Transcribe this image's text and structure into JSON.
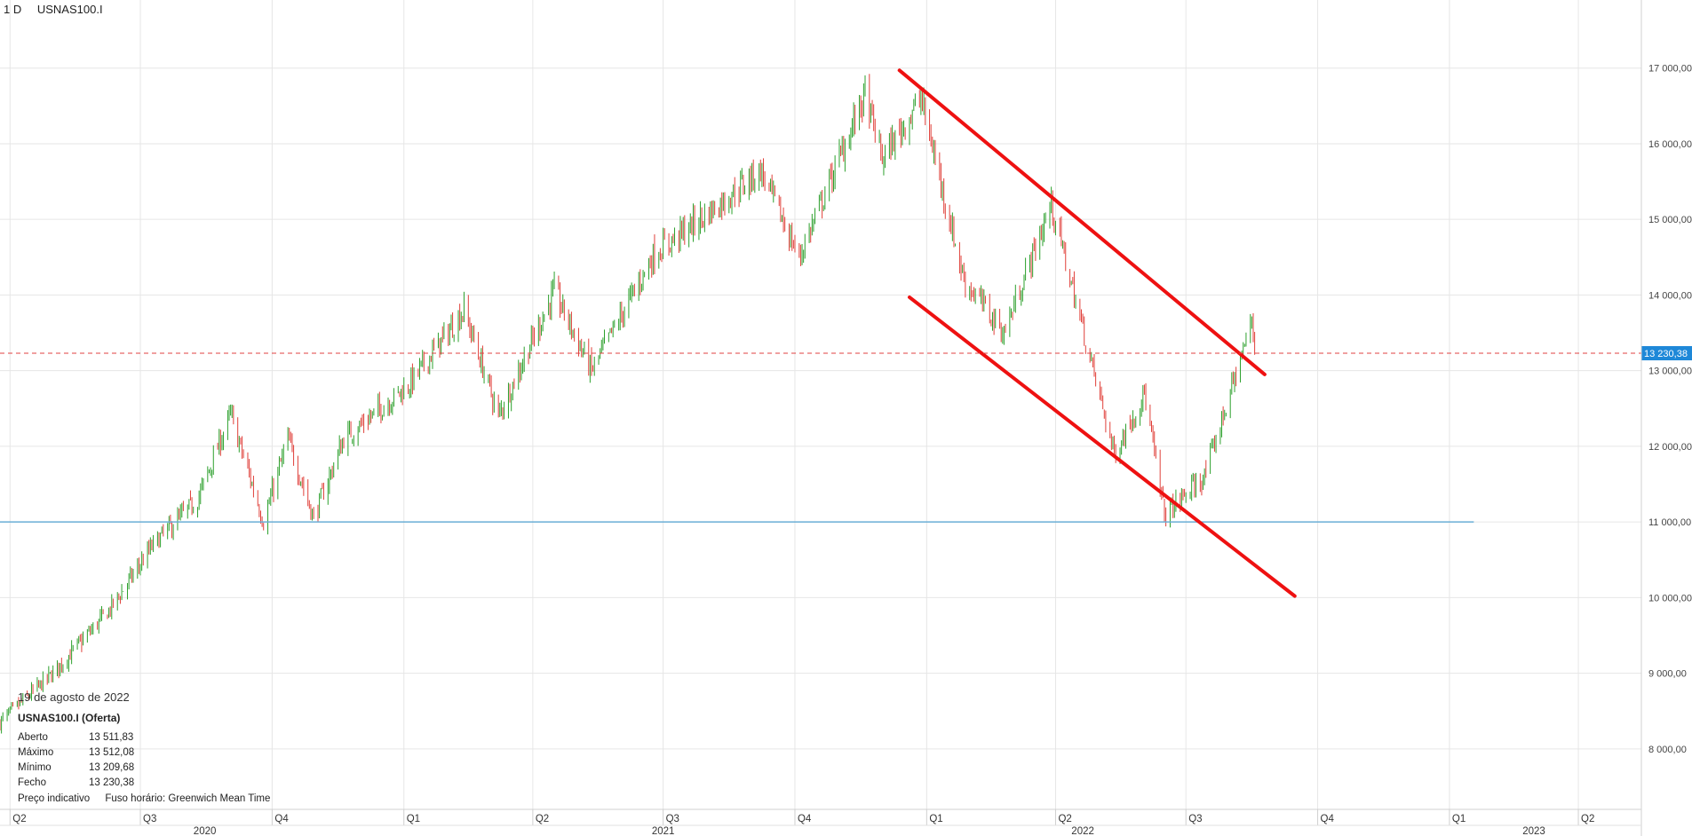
{
  "header": {
    "interval": "1 D",
    "symbol": "USNAS100.I"
  },
  "info_panel": {
    "date": "19 de agosto de 2022",
    "instrument": "USNAS100.I (Oferta)",
    "rows": [
      {
        "label": "Aberto",
        "value": "13 511,83"
      },
      {
        "label": "Máximo",
        "value": "13 512,08"
      },
      {
        "label": "Mínimo",
        "value": "13 209,68"
      },
      {
        "label": "Fecho",
        "value": "13 230,38"
      }
    ],
    "footer_note": "Preço indicativo",
    "timezone": "Fuso horário: Greenwich Mean Time"
  },
  "colors": {
    "up": "#2ca02c",
    "down": "#e0403a",
    "grid": "#e6e6e6",
    "trend": "#ee1111",
    "support": "#6aaed6",
    "price_line": "#e04040",
    "price_badge": "#1e88d8"
  },
  "chart_data": {
    "type": "candlestick",
    "ylim": [
      7200,
      17900
    ],
    "yticks": [
      "17 000,00",
      "16 000,00",
      "15 000,00",
      "14 000,00",
      "13 000,00",
      "12 000,00",
      "11 000,00",
      "10 000,00",
      "9 000,00",
      "8 000,00"
    ],
    "ytick_values": [
      17000,
      16000,
      15000,
      14000,
      13000,
      12000,
      11000,
      10000,
      9000,
      8000
    ],
    "last_price": 13230.38,
    "last_price_label": "13 230,38",
    "xrange": [
      "2020-03-25",
      "2023-05-15"
    ],
    "quarter_ticks": [
      {
        "date": "2020-04-01",
        "label": "Q2"
      },
      {
        "date": "2020-07-01",
        "label": "Q3"
      },
      {
        "date": "2020-10-01",
        "label": "Q4"
      },
      {
        "date": "2021-01-01",
        "label": "Q1"
      },
      {
        "date": "2021-04-01",
        "label": "Q2"
      },
      {
        "date": "2021-07-01",
        "label": "Q3"
      },
      {
        "date": "2021-10-01",
        "label": "Q4"
      },
      {
        "date": "2022-01-01",
        "label": "Q1"
      },
      {
        "date": "2022-04-01",
        "label": "Q2"
      },
      {
        "date": "2022-07-01",
        "label": "Q3"
      },
      {
        "date": "2022-10-01",
        "label": "Q4"
      },
      {
        "date": "2023-01-01",
        "label": "Q1"
      },
      {
        "date": "2023-04-01",
        "label": "Q2"
      }
    ],
    "year_ticks": [
      {
        "date": "2020-08-15",
        "label": "2020"
      },
      {
        "date": "2021-07-01",
        "label": "2021"
      },
      {
        "date": "2022-04-20",
        "label": "2022"
      },
      {
        "date": "2023-03-01",
        "label": "2023"
      }
    ],
    "price_path": [
      [
        "2020-03-25",
        8350
      ],
      [
        "2020-05-01",
        9000
      ],
      [
        "2020-06-10",
        9850
      ],
      [
        "2020-07-10",
        10700
      ],
      [
        "2020-08-10",
        11300
      ],
      [
        "2020-09-02",
        12420
      ],
      [
        "2020-09-25",
        11000
      ],
      [
        "2020-10-12",
        12100
      ],
      [
        "2020-10-30",
        11050
      ],
      [
        "2020-11-20",
        12100
      ],
      [
        "2021-01-04",
        12800
      ],
      [
        "2021-02-12",
        13800
      ],
      [
        "2021-03-08",
        12400
      ],
      [
        "2021-04-16",
        14050
      ],
      [
        "2021-05-12",
        13000
      ],
      [
        "2021-06-25",
        14550
      ],
      [
        "2021-07-30",
        15050
      ],
      [
        "2021-09-07",
        15650
      ],
      [
        "2021-10-04",
        14500
      ],
      [
        "2021-11-19",
        16650
      ],
      [
        "2021-12-01",
        15800
      ],
      [
        "2021-12-28",
        16600
      ],
      [
        "2022-01-27",
        14200
      ],
      [
        "2022-02-24",
        13500
      ],
      [
        "2022-03-29",
        15200
      ],
      [
        "2022-05-12",
        11900
      ],
      [
        "2022-06-02",
        12700
      ],
      [
        "2022-06-16",
        11100
      ],
      [
        "2022-07-14",
        11600
      ],
      [
        "2022-08-16",
        13650
      ],
      [
        "2022-08-19",
        13230
      ]
    ],
    "trendlines": [
      {
        "name": "upper",
        "from": [
          "2021-12-13",
          16970
        ],
        "to": [
          "2022-08-25",
          12950
        ]
      },
      {
        "name": "lower",
        "from": [
          "2021-12-20",
          13970
        ],
        "to": [
          "2022-09-15",
          10020
        ]
      }
    ],
    "support_line": {
      "value": 11000,
      "from": "2020-03-25",
      "to": "2023-01-18"
    }
  }
}
